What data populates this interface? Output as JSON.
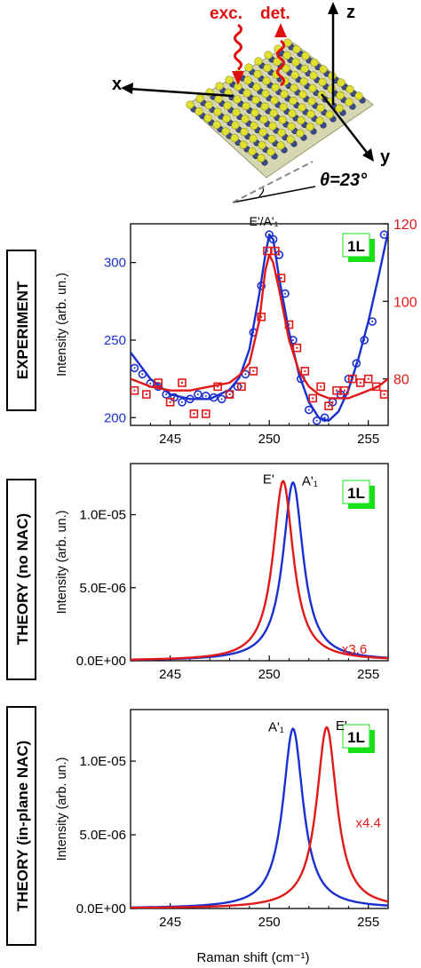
{
  "crystal": {
    "exc_label": "exc.",
    "det_label": "det.",
    "axis_x": "x",
    "axis_y": "y",
    "axis_z": "z",
    "theta_label": "θ=23°",
    "colors": {
      "excitation": "#e01010",
      "sulfur": "#e0e030",
      "metal": "#3a4a8a"
    }
  },
  "side_labels": [
    "EXPERIMENT",
    "THEORY (no NAC)",
    "THEORY (in-plane NAC)"
  ],
  "shared_xlabel": "Raman shift (cm⁻¹)",
  "chart_data": [
    {
      "type": "scatter",
      "title": "E'/A'₁",
      "badge": "1L",
      "xlim": [
        243,
        256
      ],
      "ylim": [
        195,
        325
      ],
      "ylim_right": [
        68,
        120
      ],
      "x_ticks": [
        245,
        250,
        255
      ],
      "y_ticks": [
        200,
        250,
        300
      ],
      "y_ticks_right": [
        80,
        100,
        120
      ],
      "ylabel": "Intensity (arb. un.)",
      "series": [
        {
          "axis": "left",
          "color": "#1a2fd0",
          "marker": "circle",
          "points_x": [
            243.2,
            243.6,
            244.0,
            244.4,
            244.8,
            245.2,
            245.6,
            246.0,
            246.4,
            246.8,
            247.2,
            247.6,
            248.0,
            248.4,
            248.8,
            249.2,
            249.6,
            250.0,
            250.2,
            250.5,
            250.8,
            251.2,
            251.6,
            252.0,
            252.4,
            252.8,
            253.2,
            253.6,
            254.0,
            254.4,
            254.8,
            255.2,
            255.8
          ],
          "points_y": [
            232,
            228,
            222,
            220,
            215,
            213,
            210,
            212,
            215,
            214,
            213,
            212,
            215,
            220,
            228,
            255,
            285,
            318,
            315,
            305,
            280,
            250,
            225,
            205,
            198,
            200,
            210,
            215,
            225,
            235,
            250,
            262,
            318
          ],
          "fit_x": [
            243.0,
            244.0,
            245.0,
            246.0,
            247.0,
            248.0,
            248.5,
            249.0,
            249.5,
            249.8,
            250.0,
            250.2,
            250.5,
            251.0,
            251.5,
            252.0,
            252.5,
            253.0,
            253.5,
            254.0,
            254.5,
            255.0,
            255.5,
            256.0
          ],
          "fit_y": [
            242,
            225,
            215,
            212,
            212,
            218,
            226,
            244,
            280,
            305,
            318,
            315,
            290,
            255,
            228,
            210,
            200,
            198,
            204,
            218,
            238,
            262,
            290,
            320
          ]
        },
        {
          "axis": "right",
          "color": "#e01818",
          "marker": "square",
          "points_x": [
            243.2,
            243.8,
            244.4,
            245.0,
            245.6,
            246.2,
            246.8,
            247.4,
            248.0,
            248.6,
            249.2,
            249.6,
            249.9,
            250.3,
            250.6,
            251.0,
            251.4,
            251.8,
            252.2,
            252.6,
            253.0,
            253.4,
            253.8,
            254.2,
            254.6,
            255.0,
            255.4,
            255.8
          ],
          "points_y": [
            77,
            76,
            79,
            74,
            79,
            71,
            71,
            78,
            76,
            78,
            82,
            96,
            113,
            113,
            106,
            94,
            88,
            82,
            75,
            78,
            73,
            77,
            77,
            80,
            79,
            80,
            78,
            76
          ],
          "fit_x": [
            243.0,
            244.0,
            245.0,
            246.0,
            247.0,
            248.0,
            248.5,
            249.0,
            249.5,
            249.8,
            250.0,
            250.2,
            250.5,
            251.0,
            251.5,
            252.0,
            252.5,
            253.0,
            253.5,
            254.0,
            254.5,
            255.0,
            255.5,
            256.0
          ],
          "fit_y": [
            80,
            78,
            77,
            77,
            78,
            79,
            81,
            84,
            95,
            108,
            112,
            110,
            103,
            90,
            82,
            78,
            76,
            75,
            75,
            75,
            76,
            77,
            78,
            80
          ]
        }
      ]
    },
    {
      "type": "line",
      "badge": "1L",
      "xlim": [
        243,
        256
      ],
      "ylim": [
        0,
        1.35e-05
      ],
      "x_ticks": [
        245,
        250,
        255
      ],
      "y_ticks": [
        0,
        5e-06,
        1e-05
      ],
      "y_tick_labels": [
        "0.0E+00",
        "5.0E-06",
        "1.0E-05"
      ],
      "ylabel": "Intensity (arb. un.)",
      "peak_labels": [
        "E'",
        "A'₁"
      ],
      "scale_note": "x3.6",
      "series": [
        {
          "color": "#1a2fd0",
          "center": 251.2,
          "width": 0.62,
          "amplitude": 1.22e-05
        },
        {
          "color": "#e01818",
          "center": 250.7,
          "width": 0.62,
          "amplitude": 1.23e-05
        }
      ]
    },
    {
      "type": "line",
      "badge": "1L",
      "xlim": [
        243,
        256
      ],
      "ylim": [
        0,
        1.35e-05
      ],
      "x_ticks": [
        245,
        250,
        255
      ],
      "y_ticks": [
        0,
        5e-06,
        1e-05
      ],
      "y_tick_labels": [
        "0.0E+00",
        "5.0E-06",
        "1.0E-05"
      ],
      "ylabel": "Intensity (arb. un.)",
      "xlabel": "Raman shift (cm⁻¹)",
      "peak_labels": [
        "A'₁",
        "E'"
      ],
      "scale_note": "x4.4",
      "series": [
        {
          "color": "#1a2fd0",
          "center": 251.2,
          "width": 0.62,
          "amplitude": 1.22e-05
        },
        {
          "color": "#e01818",
          "center": 252.9,
          "width": 0.62,
          "amplitude": 1.23e-05
        }
      ]
    }
  ]
}
